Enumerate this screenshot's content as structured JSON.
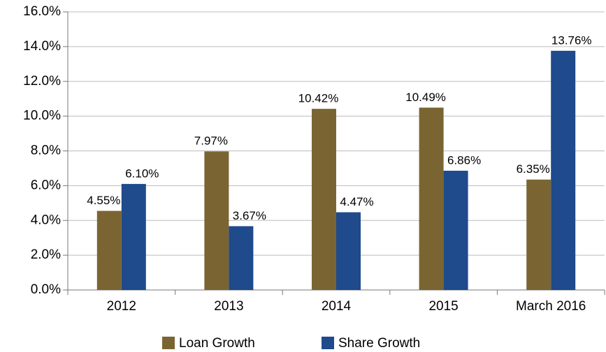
{
  "chart_data": {
    "type": "bar",
    "categories": [
      "2012",
      "2013",
      "2014",
      "2015",
      "March 2016"
    ],
    "series": [
      {
        "name": "Loan Growth",
        "color": "#7a6532",
        "values": [
          4.55,
          7.97,
          10.42,
          10.49,
          6.35
        ],
        "value_labels": [
          "4.55%",
          "7.97%",
          "10.42%",
          "10.49%",
          "6.35%"
        ]
      },
      {
        "name": "Share Growth",
        "color": "#1f4a8c",
        "values": [
          6.1,
          3.67,
          4.47,
          6.86,
          13.76
        ],
        "value_labels": [
          "6.10%",
          "3.67%",
          "4.47%",
          "6.86%",
          "13.76%"
        ]
      }
    ],
    "ylim": [
      0,
      16
    ],
    "yticks": [
      {
        "value": 0,
        "label": "0.0%"
      },
      {
        "value": 2,
        "label": "2.0%"
      },
      {
        "value": 4,
        "label": "4.0%"
      },
      {
        "value": 6,
        "label": "6.0%"
      },
      {
        "value": 8,
        "label": "8.0%"
      },
      {
        "value": 10,
        "label": "10.0%"
      },
      {
        "value": 12,
        "label": "12.0%"
      },
      {
        "value": 14,
        "label": "14.0%"
      },
      {
        "value": 16,
        "label": "16.0%"
      }
    ],
    "grid": true,
    "legend": "bottom"
  }
}
